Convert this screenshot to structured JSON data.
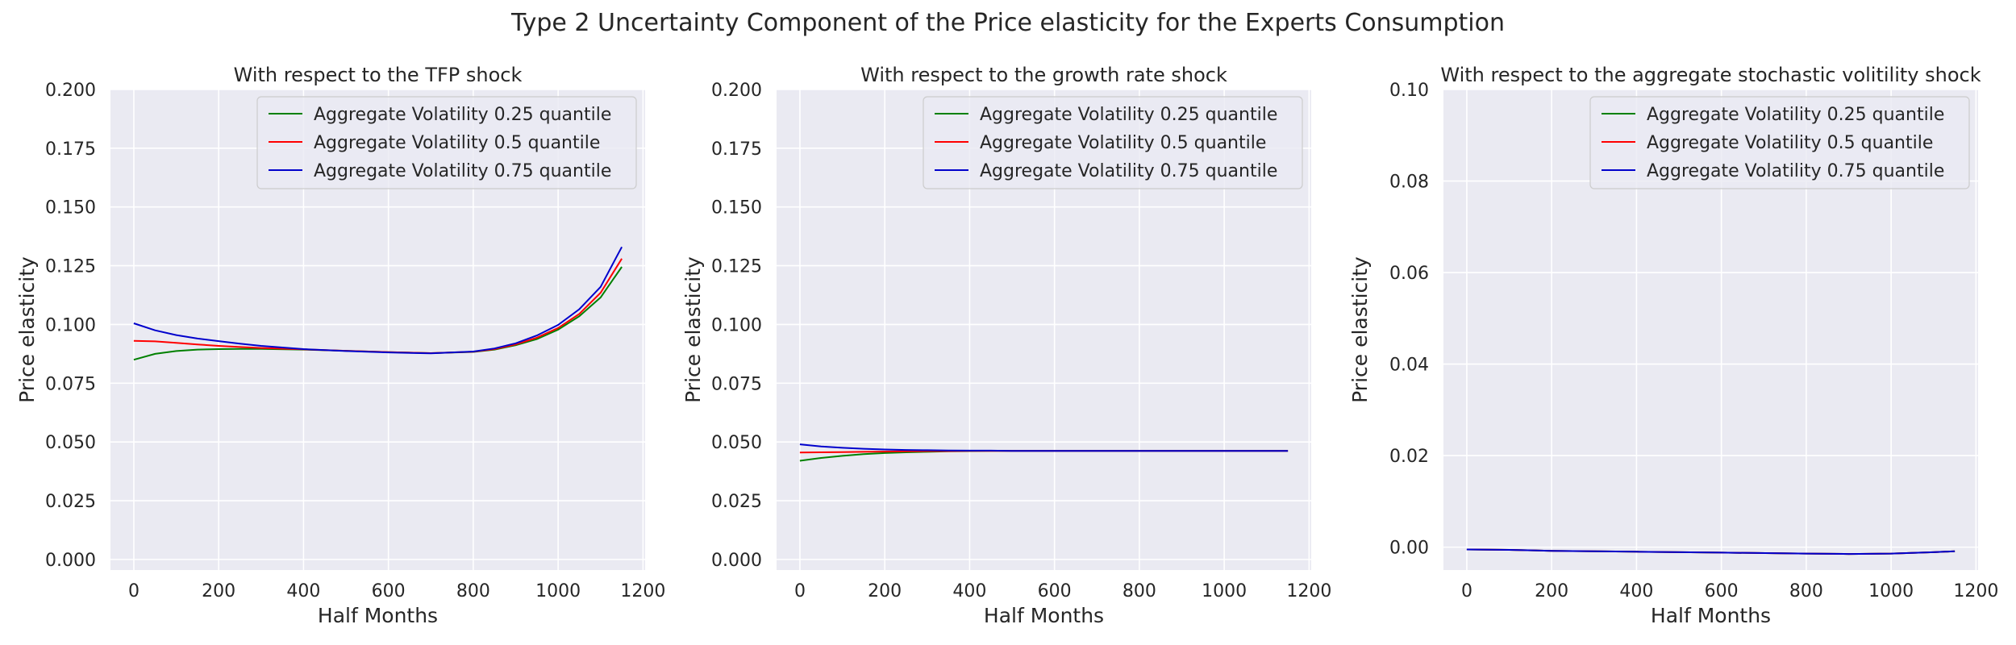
{
  "title": "Type 2 Uncertainty Component of the Price elasticity for the Experts Consumption",
  "colors": {
    "background": "#eaeaf2",
    "grid": "#ffffff",
    "text": "#262626"
  },
  "chart_data": [
    {
      "type": "line",
      "title": "With respect to the TFP shock",
      "xlabel": "Half Months",
      "ylabel": "Price elasticity",
      "xlim": [
        -55,
        1205
      ],
      "ylim": [
        -0.0045,
        0.2
      ],
      "xticks": [
        0,
        200,
        400,
        600,
        800,
        1000,
        1200
      ],
      "yticks": [
        0.0,
        0.025,
        0.05,
        0.075,
        0.1,
        0.125,
        0.15,
        0.175,
        0.2
      ],
      "ytick_labels": [
        "0.000",
        "0.025",
        "0.050",
        "0.075",
        "0.100",
        "0.125",
        "0.150",
        "0.175",
        "0.200"
      ],
      "grid": true,
      "legend_position": "upper right",
      "series": [
        {
          "name": "Aggregate Volatility 0.25 quantile",
          "color": "#008000",
          "x": [
            0,
            50,
            100,
            150,
            200,
            250,
            300,
            400,
            500,
            600,
            700,
            800,
            850,
            900,
            950,
            1000,
            1050,
            1100,
            1150
          ],
          "y": [
            0.085,
            0.0875,
            0.0887,
            0.0893,
            0.0895,
            0.0896,
            0.0896,
            0.0893,
            0.0888,
            0.0882,
            0.0878,
            0.0883,
            0.0893,
            0.0912,
            0.0938,
            0.0978,
            0.1035,
            0.1115,
            0.1245
          ]
        },
        {
          "name": "Aggregate Volatility 0.5 quantile",
          "color": "#ff0000",
          "x": [
            0,
            50,
            100,
            150,
            200,
            250,
            300,
            400,
            500,
            600,
            700,
            800,
            850,
            900,
            950,
            1000,
            1050,
            1100,
            1150
          ],
          "y": [
            0.093,
            0.0928,
            0.0922,
            0.0915,
            0.0909,
            0.0904,
            0.09,
            0.0894,
            0.0888,
            0.0882,
            0.0878,
            0.0884,
            0.0895,
            0.0915,
            0.0944,
            0.0985,
            0.1045,
            0.1135,
            0.128
          ]
        },
        {
          "name": "Aggregate Volatility 0.75 quantile",
          "color": "#0000cc",
          "x": [
            0,
            50,
            100,
            150,
            200,
            250,
            300,
            400,
            500,
            600,
            700,
            800,
            850,
            900,
            950,
            1000,
            1050,
            1100,
            1150
          ],
          "y": [
            0.1005,
            0.0975,
            0.0955,
            0.094,
            0.0929,
            0.0918,
            0.0909,
            0.0895,
            0.0887,
            0.0881,
            0.0877,
            0.0885,
            0.0898,
            0.092,
            0.0953,
            0.0998,
            0.1065,
            0.116,
            0.133
          ]
        }
      ]
    },
    {
      "type": "line",
      "title": "With respect to the growth rate shock",
      "xlabel": "Half Months",
      "ylabel": "Price elasticity",
      "xlim": [
        -55,
        1205
      ],
      "ylim": [
        -0.0045,
        0.2
      ],
      "xticks": [
        0,
        200,
        400,
        600,
        800,
        1000,
        1200
      ],
      "yticks": [
        0.0,
        0.025,
        0.05,
        0.075,
        0.1,
        0.125,
        0.15,
        0.175,
        0.2
      ],
      "ytick_labels": [
        "0.000",
        "0.025",
        "0.050",
        "0.075",
        "0.100",
        "0.125",
        "0.150",
        "0.175",
        "0.200"
      ],
      "grid": true,
      "legend_position": "upper right",
      "series": [
        {
          "name": "Aggregate Volatility 0.25 quantile",
          "color": "#008000",
          "x": [
            0,
            50,
            100,
            150,
            200,
            250,
            300,
            350,
            400,
            450,
            500,
            600,
            800,
            1000,
            1150
          ],
          "y": [
            0.042,
            0.0432,
            0.0441,
            0.0448,
            0.0453,
            0.0456,
            0.0458,
            0.046,
            0.0461,
            0.0462,
            0.0462,
            0.0462,
            0.0462,
            0.0462,
            0.0462
          ]
        },
        {
          "name": "Aggregate Volatility 0.5 quantile",
          "color": "#ff0000",
          "x": [
            0,
            50,
            100,
            150,
            200,
            250,
            300,
            350,
            400,
            450,
            500,
            600,
            800,
            1000,
            1150
          ],
          "y": [
            0.0455,
            0.0456,
            0.0457,
            0.0458,
            0.0459,
            0.046,
            0.0461,
            0.0461,
            0.0462,
            0.0462,
            0.0462,
            0.0462,
            0.0462,
            0.0462,
            0.0462
          ]
        },
        {
          "name": "Aggregate Volatility 0.75 quantile",
          "color": "#0000cc",
          "x": [
            0,
            50,
            100,
            150,
            200,
            250,
            300,
            350,
            400,
            450,
            500,
            600,
            800,
            1000,
            1150
          ],
          "y": [
            0.049,
            0.0481,
            0.0475,
            0.0471,
            0.0468,
            0.0466,
            0.0465,
            0.0464,
            0.0463,
            0.0463,
            0.0462,
            0.0462,
            0.0462,
            0.0462,
            0.0462
          ]
        }
      ]
    },
    {
      "type": "line",
      "title": "With respect to the aggregate stochastic volitility shock",
      "xlabel": "Half Months",
      "ylabel": "Price elasticity",
      "xlim": [
        -55,
        1205
      ],
      "ylim": [
        -0.005,
        0.1
      ],
      "xticks": [
        0,
        200,
        400,
        600,
        800,
        1000,
        1200
      ],
      "yticks": [
        0.0,
        0.02,
        0.04,
        0.06,
        0.08,
        0.1
      ],
      "ytick_labels": [
        "0.00",
        "0.02",
        "0.04",
        "0.06",
        "0.08",
        "0.10"
      ],
      "grid": true,
      "legend_position": "upper right",
      "series": [
        {
          "name": "Aggregate Volatility 0.25 quantile",
          "color": "#008000",
          "x": [
            0,
            100,
            200,
            400,
            600,
            800,
            900,
            1000,
            1100,
            1150
          ],
          "y": [
            -0.0005,
            -0.0006,
            -0.0008,
            -0.001,
            -0.0012,
            -0.0014,
            -0.0015,
            -0.0014,
            -0.0011,
            -0.0009
          ]
        },
        {
          "name": "Aggregate Volatility 0.5 quantile",
          "color": "#ff0000",
          "x": [
            0,
            100,
            200,
            400,
            600,
            800,
            900,
            1000,
            1100,
            1150
          ],
          "y": [
            -0.0005,
            -0.0006,
            -0.0008,
            -0.001,
            -0.0012,
            -0.0014,
            -0.0015,
            -0.0014,
            -0.0011,
            -0.0009
          ]
        },
        {
          "name": "Aggregate Volatility 0.75 quantile",
          "color": "#0000cc",
          "x": [
            0,
            100,
            200,
            400,
            600,
            800,
            900,
            1000,
            1100,
            1150
          ],
          "y": [
            -0.0005,
            -0.0006,
            -0.0008,
            -0.001,
            -0.0012,
            -0.0014,
            -0.0015,
            -0.0014,
            -0.0011,
            -0.0009
          ]
        }
      ]
    }
  ]
}
